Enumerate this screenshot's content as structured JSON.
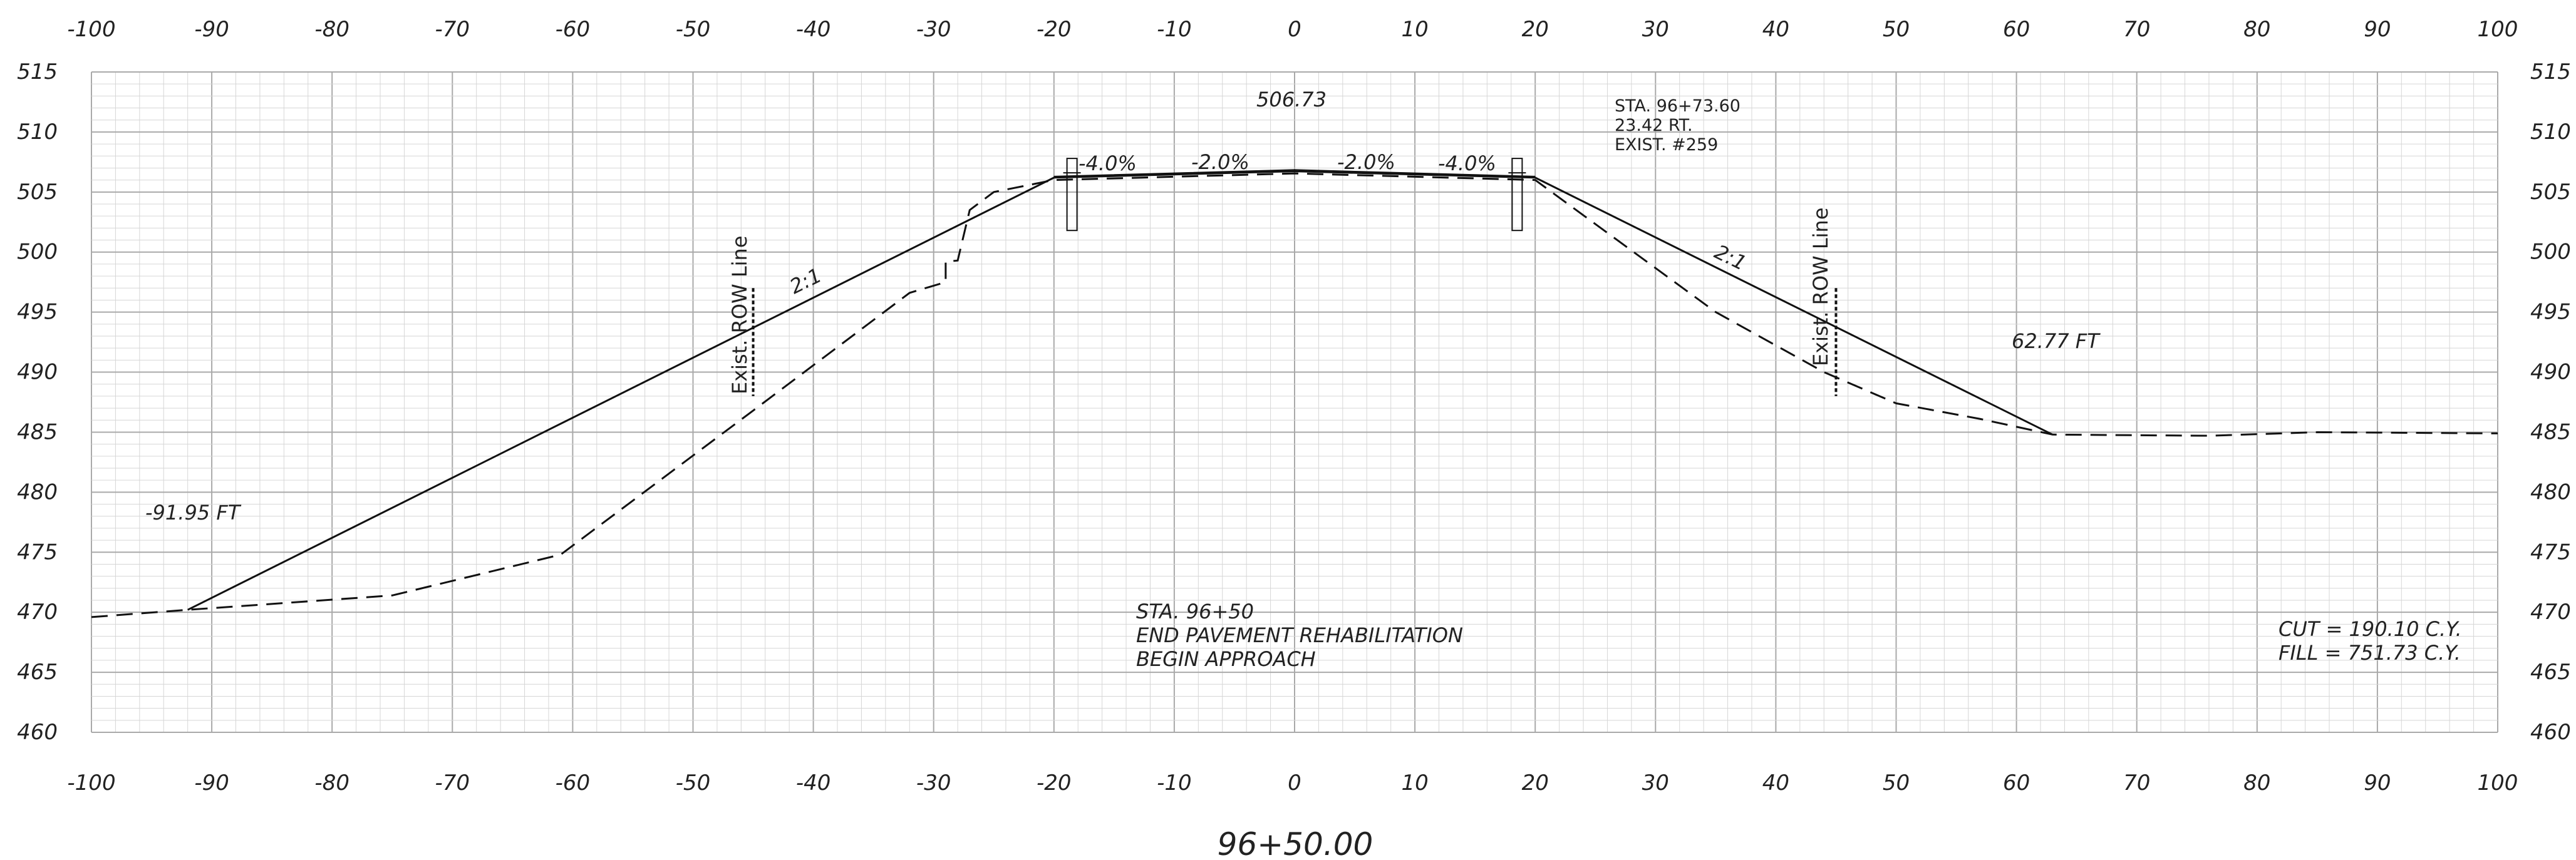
{
  "x_axis": {
    "min": -100,
    "max": 100,
    "major_step": 10,
    "minor_step": 2,
    "ticks": [
      "-100",
      "-90",
      "-80",
      "-70",
      "-60",
      "-50",
      "-40",
      "-30",
      "-20",
      "-10",
      "0",
      "10",
      "20",
      "30",
      "40",
      "50",
      "60",
      "70",
      "80",
      "90",
      "100"
    ]
  },
  "y_axis": {
    "min": 460,
    "max": 515,
    "major_step": 5,
    "minor_step": 1,
    "ticks": [
      "515",
      "510",
      "505",
      "500",
      "495",
      "490",
      "485",
      "480",
      "475",
      "470",
      "465",
      "460"
    ]
  },
  "station_label": "96+50.00",
  "annotations": {
    "top_elevation": "506.73",
    "left_offset": "-91.95 FT",
    "right_offset": "62.77 FT",
    "slope_left": "2:1",
    "slope_right": "2:1",
    "cross_slopes": [
      "-4.0%",
      "-2.0%",
      "-2.0%",
      "-4.0%"
    ],
    "row_left": "Exist. ROW  Line",
    "row_right": "Exist. ROW  Line",
    "sta_note": [
      "STA. 96+73.60",
      "23.42 RT.",
      "EXIST. #259"
    ],
    "center_note": [
      "STA. 96+50",
      "END PAVEMENT REHABILITATION",
      "BEGIN APPROACH"
    ],
    "cut": "CUT = 190.10 C.Y.",
    "fill": "FILL = 751.73 C.Y."
  },
  "profiles": {
    "proposed": [
      [
        -92,
        470.2
      ],
      [
        -20,
        506.2
      ],
      [
        0,
        506.73
      ],
      [
        20,
        506.2
      ],
      [
        63,
        484.8
      ]
    ],
    "existing": [
      [
        -100,
        469.6
      ],
      [
        -92,
        470.2
      ],
      [
        -75,
        471.4
      ],
      [
        -61,
        474.8
      ],
      [
        -45,
        486.8
      ],
      [
        -32,
        496.6
      ],
      [
        -29,
        497.5
      ],
      [
        -29,
        499.2
      ],
      [
        -28,
        499.3
      ],
      [
        -27,
        503.5
      ],
      [
        -25,
        505.0
      ],
      [
        -20,
        506.0
      ],
      [
        0,
        506.55
      ],
      [
        20,
        506.0
      ],
      [
        23,
        503.8
      ],
      [
        35,
        495.0
      ],
      [
        44,
        490.0
      ],
      [
        50,
        487.4
      ],
      [
        57,
        486.1
      ],
      [
        63,
        484.8
      ],
      [
        76,
        484.7
      ],
      [
        85,
        485.0
      ],
      [
        100,
        484.9
      ]
    ],
    "pavement_top": [
      [
        -20,
        506.3
      ],
      [
        0,
        506.85
      ],
      [
        20,
        506.3
      ]
    ]
  },
  "row_markers": [
    -45,
    45
  ],
  "colors": {
    "line": "#111111",
    "grid_minor": "#d6d6d6",
    "grid_major": "#a9a9a9",
    "text": "#222222"
  }
}
